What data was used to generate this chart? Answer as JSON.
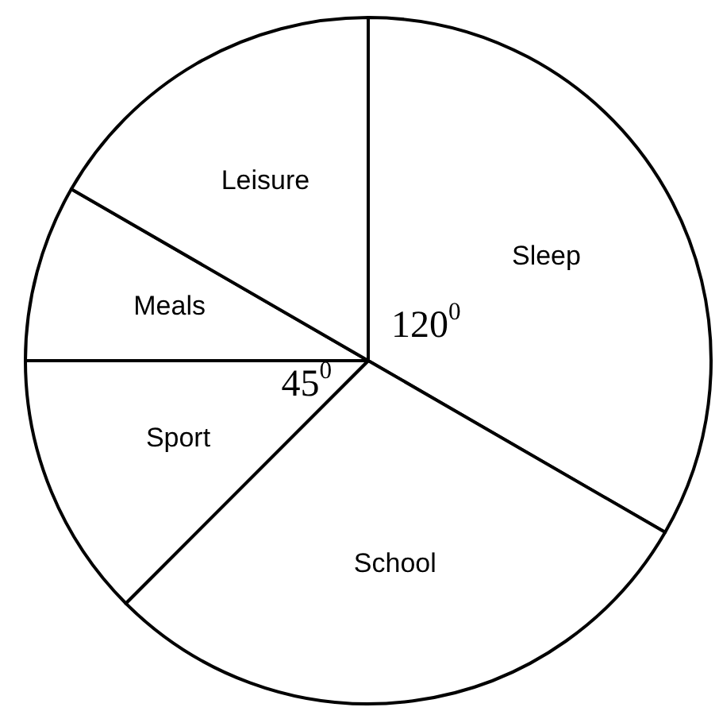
{
  "chart_data": {
    "type": "pie",
    "categories": [
      "Sleep",
      "School",
      "Sport",
      "Meals",
      "Leisure"
    ],
    "values": [
      120,
      105,
      45,
      30,
      60
    ],
    "colors": [
      "#ffffff",
      "#ffffff",
      "#ffffff",
      "#ffffff",
      "#ffffff"
    ],
    "value_labels": [
      "120$^{0}$",
      null,
      "45$^{0}$",
      null,
      null
    ],
    "legend": false
  }
}
